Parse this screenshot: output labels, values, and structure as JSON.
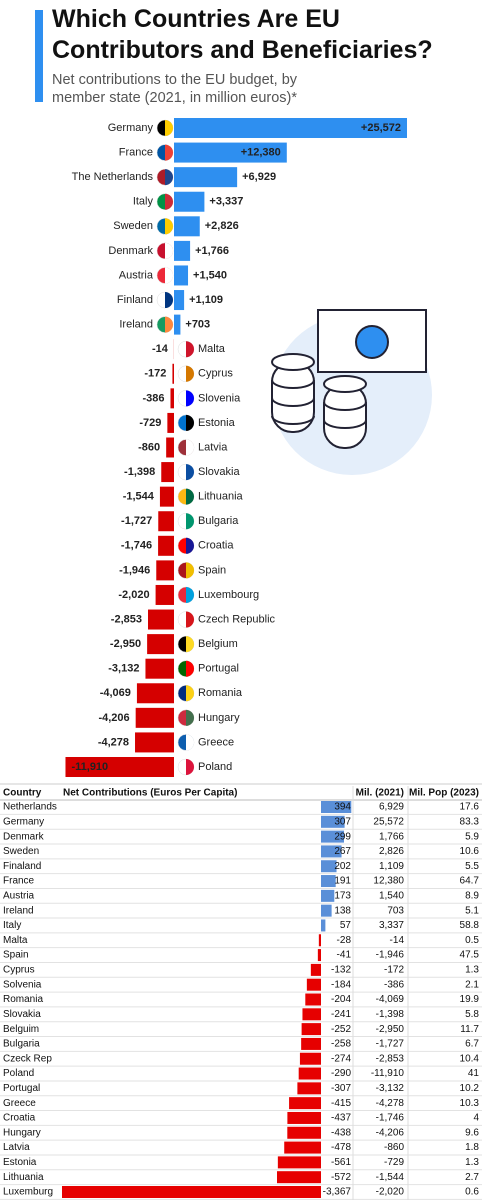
{
  "chart_data": {
    "type": "bar",
    "orientation": "horizontal",
    "title": "Which Countries Are EU Contributors and Beneficiaries?",
    "subtitle": "Net contributions to the EU budget, by member state (2021, in million euros)*",
    "categories": [
      "Germany",
      "France",
      "The Netherlands",
      "Italy",
      "Sweden",
      "Denmark",
      "Austria",
      "Finland",
      "Ireland",
      "Malta",
      "Cyprus",
      "Slovenia",
      "Estonia",
      "Latvia",
      "Slovakia",
      "Lithuania",
      "Bulgaria",
      "Croatia",
      "Spain",
      "Luxembourg",
      "Czech Republic",
      "Belgium",
      "Portugal",
      "Romania",
      "Hungary",
      "Greece",
      "Poland"
    ],
    "values": [
      25572,
      12380,
      6929,
      3337,
      2826,
      1766,
      1540,
      1109,
      703,
      -14,
      -172,
      -386,
      -729,
      -860,
      -1398,
      -1544,
      -1727,
      -1746,
      -1946,
      -2020,
      -2853,
      -2950,
      -3132,
      -4069,
      -4206,
      -4278,
      -11910
    ],
    "value_labels": [
      "+25,572",
      "+12,380",
      "+6,929",
      "+3,337",
      "+2,826",
      "+1,766",
      "+1,540",
      "+1,109",
      "+703",
      "-14",
      "-172",
      "-386",
      "-729",
      "-860",
      "-1,398",
      "-1,544",
      "-1,727",
      "-1,746",
      "-1,946",
      "-2,020",
      "-2,853",
      "-2,950",
      "-3,132",
      "-4,069",
      "-4,206",
      "-4,278",
      "-11,910"
    ],
    "positive_color": "#2e8ff0",
    "negative_color": "#d50000"
  },
  "table": {
    "columns": [
      "Country",
      "Net Contributions (Euros Per Capita)",
      "Mil. (2021)",
      "Mil. Pop (2023)"
    ],
    "countries": [
      "Netherlands",
      "Germany",
      "Denmark",
      "Sweden",
      "Finaland",
      "France",
      "Austria",
      "Ireland",
      "Italy",
      "Malta",
      "Spain",
      "Cyprus",
      "Solvenia",
      "Romania",
      "Slovakia",
      "Belguim",
      "Bulgaria",
      "Czeck Rep",
      "Poland",
      "Portugal",
      "Greece",
      "Croatia",
      "Hungary",
      "Latvia",
      "Estonia",
      "Lithuania",
      "Luxemburg"
    ],
    "per_capita": [
      394,
      307,
      299,
      267,
      202,
      191,
      173,
      138,
      57,
      -28,
      -41,
      -132,
      -184,
      -204,
      -241,
      -252,
      -258,
      -274,
      -290,
      -307,
      -415,
      -437,
      -438,
      -478,
      -561,
      -572,
      -3367
    ],
    "per_capita_labels": [
      "394",
      "307",
      "299",
      "267",
      "202",
      "191",
      "173",
      "138",
      "57",
      "-28",
      "-41",
      "-132",
      "-184",
      "-204",
      "-241",
      "-252",
      "-258",
      "-274",
      "-290",
      "-307",
      "-415",
      "-437",
      "-438",
      "-478",
      "-561",
      "-572",
      "-3,367"
    ],
    "mil_2021": [
      "6,929",
      "25,572",
      "1,766",
      "2,826",
      "1,109",
      "12,380",
      "1,540",
      "703",
      "3,337",
      "-14",
      "-1,946",
      "-172",
      "-386",
      "-4,069",
      "-1,398",
      "-2,950",
      "-1,727",
      "-2,853",
      "-11,910",
      "-3,132",
      "-4,278",
      "-1,746",
      "-4,206",
      "-860",
      "-729",
      "-1,544",
      "-2,020"
    ],
    "pop_2023": [
      17.6,
      83.3,
      5.9,
      10.6,
      5.5,
      64.7,
      8.9,
      5.1,
      58.8,
      0.5,
      47.5,
      1.3,
      2.1,
      19.9,
      5.8,
      11.7,
      6.7,
      10.4,
      41,
      10.2,
      10.3,
      4,
      9.6,
      1.8,
      1.3,
      2.7,
      0.6
    ],
    "positive_color": "#5a8fd8",
    "negative_color": "#e60000"
  }
}
